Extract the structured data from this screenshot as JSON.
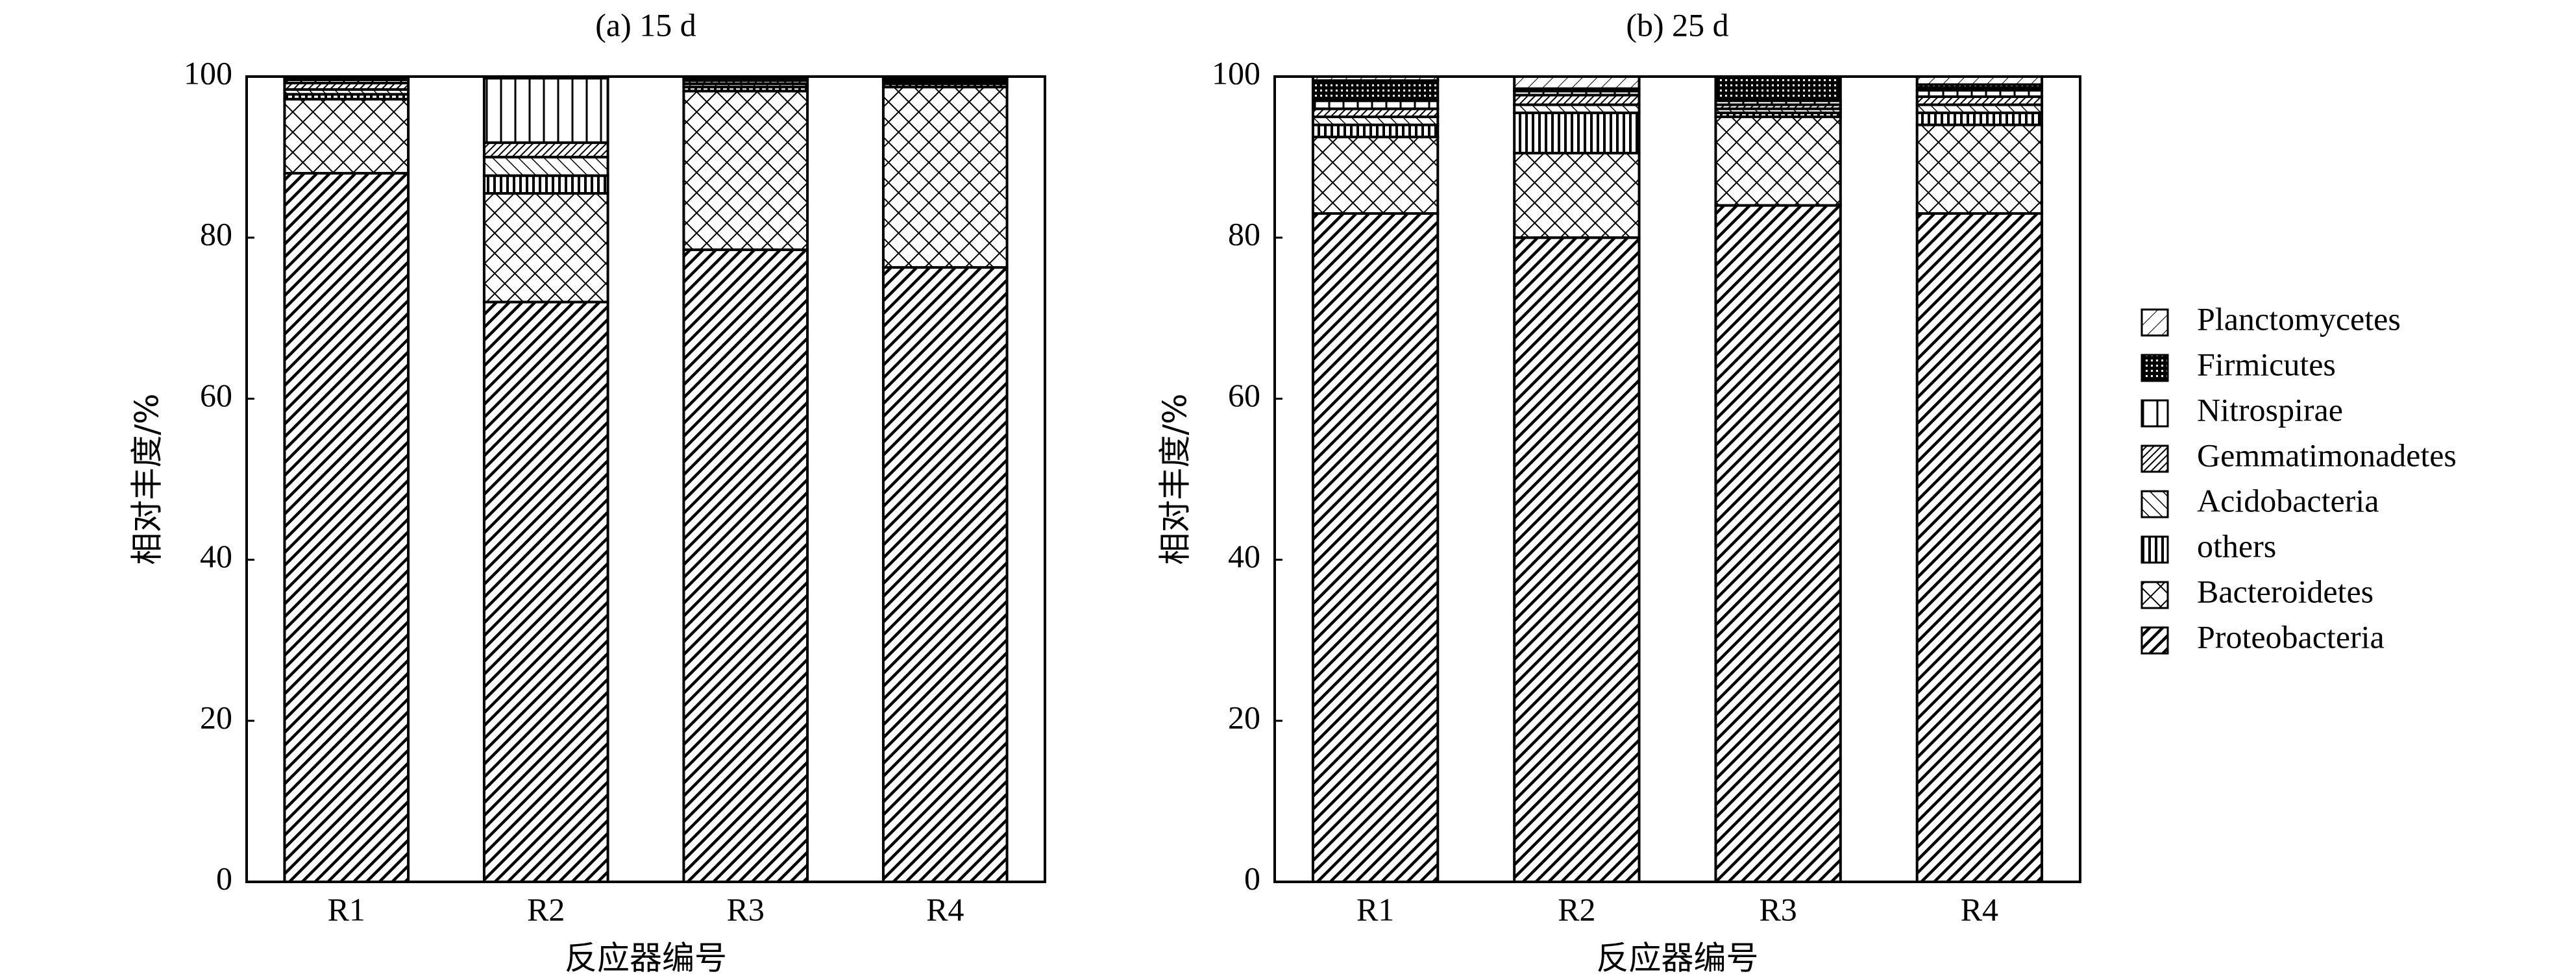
{
  "chart_data": [
    {
      "type": "stacked_bar",
      "title": "(a) 15 d",
      "xlabel": "反应器编号",
      "ylabel": "相对丰度/%",
      "categories": [
        "R1",
        "R2",
        "R3",
        "R4"
      ],
      "ylim": [
        0,
        100
      ],
      "yticks": [
        0,
        20,
        40,
        60,
        80,
        100
      ],
      "series": [
        {
          "name": "Proteobacteria",
          "color": "#000000",
          "values": [
            88,
            72,
            78.5,
            76.3
          ]
        },
        {
          "name": "Bacteroidetes",
          "color": "#000000",
          "values": [
            9.2,
            13.5,
            19.7,
            22.4
          ]
        },
        {
          "name": "others",
          "color": "#000000",
          "values": [
            0.6,
            2.2,
            0.5,
            0.4
          ]
        },
        {
          "name": "Acidobacteria",
          "color": "#000000",
          "values": [
            0.6,
            2.3,
            0.4,
            0.3
          ]
        },
        {
          "name": "Gemmatimonadetes",
          "color": "#000000",
          "values": [
            0.8,
            1.8,
            0.4,
            0.3
          ]
        },
        {
          "name": "Nitrospirae",
          "color": "#000000",
          "values": [
            0.4,
            8,
            0.2,
            0.1
          ]
        },
        {
          "name": "Firmicutes",
          "color": "#000000",
          "values": [
            0.2,
            0.1,
            0.1,
            0.1
          ]
        },
        {
          "name": "Planctomycetes",
          "color": "#000000",
          "values": [
            0.2,
            0.1,
            0.2,
            0.1
          ]
        }
      ]
    },
    {
      "type": "stacked_bar",
      "title": "(b) 25 d",
      "xlabel": "反应器编号",
      "ylabel": "相对丰度/%",
      "categories": [
        "R1",
        "R2",
        "R3",
        "R4"
      ],
      "ylim": [
        0,
        100
      ],
      "yticks": [
        0,
        20,
        40,
        60,
        80,
        100
      ],
      "legend": "right",
      "series": [
        {
          "name": "Proteobacteria",
          "color": "#000000",
          "values": [
            83,
            80,
            84,
            83
          ]
        },
        {
          "name": "Bacteroidetes",
          "color": "#000000",
          "values": [
            9.5,
            10.5,
            11,
            11
          ]
        },
        {
          "name": "others",
          "color": "#000000",
          "values": [
            1.5,
            5,
            0.5,
            1.5
          ]
        },
        {
          "name": "Acidobacteria",
          "color": "#000000",
          "values": [
            1,
            1,
            0.5,
            1
          ]
        },
        {
          "name": "Gemmatimonadetes",
          "color": "#000000",
          "values": [
            1,
            1.2,
            0.5,
            1
          ]
        },
        {
          "name": "Nitrospirae",
          "color": "#000000",
          "values": [
            1,
            0.5,
            0.5,
            0.8
          ]
        },
        {
          "name": "Firmicutes",
          "color": "#000000",
          "values": [
            2.5,
            0.3,
            3,
            0.7
          ]
        },
        {
          "name": "Planctomycetes",
          "color": "#000000",
          "values": [
            0.5,
            1.5,
            0,
            1
          ]
        }
      ]
    }
  ]
}
